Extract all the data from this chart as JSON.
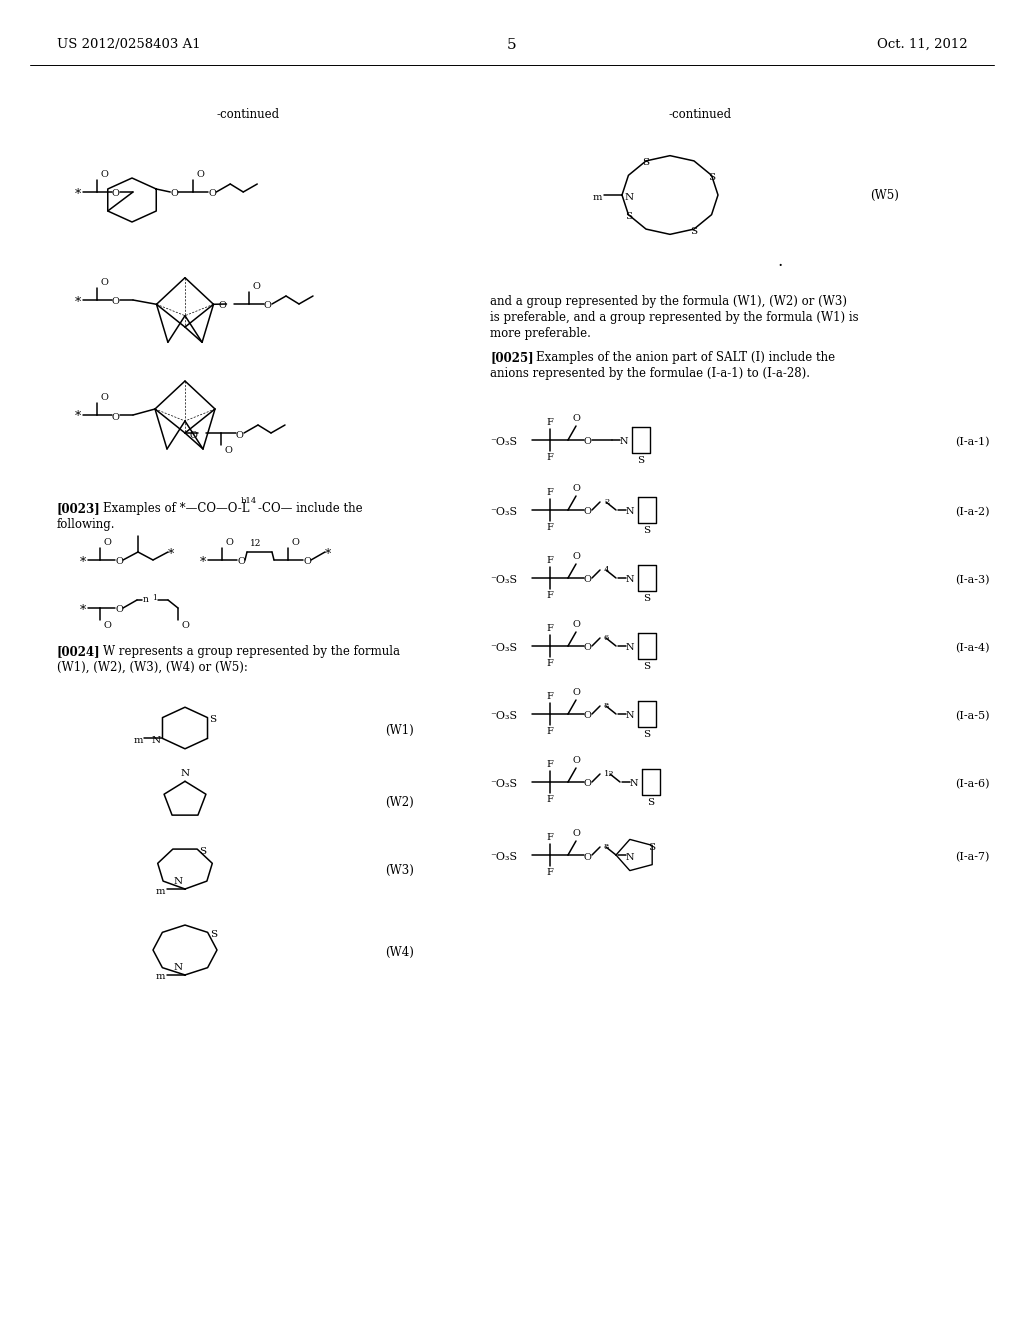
{
  "bg": "#ffffff",
  "header_left": "US 2012/0258403 A1",
  "header_center": "5",
  "header_right": "Oct. 11, 2012"
}
